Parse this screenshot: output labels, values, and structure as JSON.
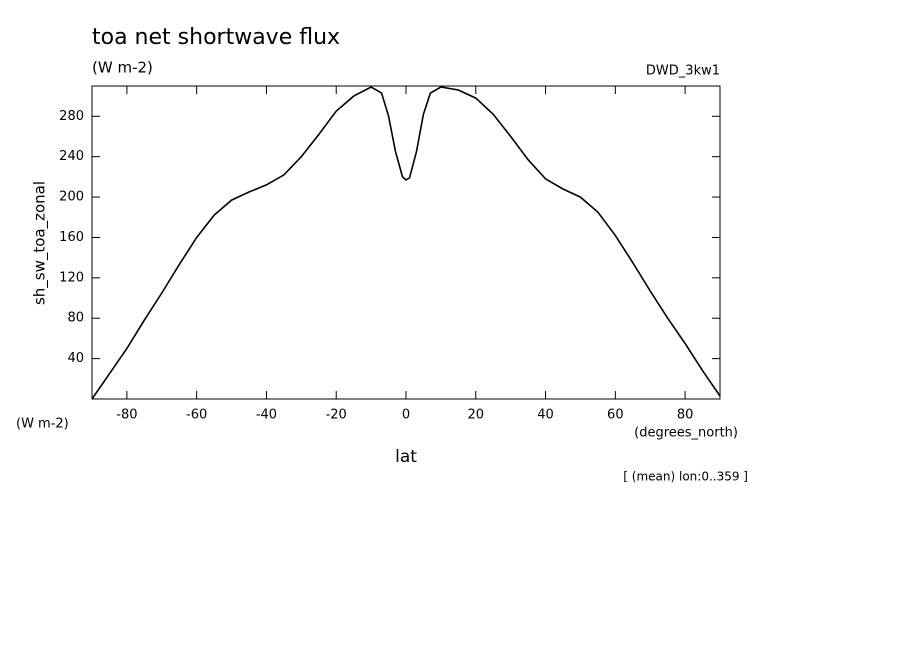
{
  "chart_data": {
    "type": "line",
    "title": "toa net shortwave flux",
    "subtitle": "(W m-2)",
    "dataset_label": "DWD_3kw1",
    "y_label": "sh_sw_toa_zonal",
    "y_units": "(W m-2)",
    "x_units": "(degrees_north)",
    "x_label": "lat",
    "annotation": "[ (mean) lon:0..359 ]",
    "x": [
      -90,
      -85,
      -80,
      -75,
      -70,
      -65,
      -60,
      -55,
      -50,
      -45,
      -40,
      -35,
      -30,
      -25,
      -20,
      -15,
      -10,
      -7,
      -5,
      -3,
      -1,
      0,
      1,
      3,
      5,
      7,
      10,
      15,
      20,
      25,
      30,
      35,
      40,
      45,
      50,
      55,
      60,
      65,
      70,
      75,
      80,
      85,
      90
    ],
    "series": [
      {
        "name": "sh_sw_toa_zonal",
        "color": "#000000",
        "values": [
          0,
          25,
          50,
          78,
          105,
          133,
          160,
          182,
          197,
          205,
          212,
          222,
          240,
          262,
          285,
          300,
          309,
          303,
          280,
          245,
          220,
          217,
          219,
          245,
          282,
          303,
          309,
          306,
          298,
          282,
          260,
          237,
          218,
          208,
          200,
          185,
          162,
          135,
          107,
          80,
          55,
          28,
          3
        ]
      }
    ],
    "xlim": [
      -90,
      90
    ],
    "xticks": [
      -80,
      -60,
      -40,
      -20,
      0,
      20,
      40,
      60,
      80
    ],
    "ylim": [
      0,
      310
    ],
    "yticks": [
      40,
      80,
      120,
      160,
      200,
      240,
      280
    ]
  }
}
